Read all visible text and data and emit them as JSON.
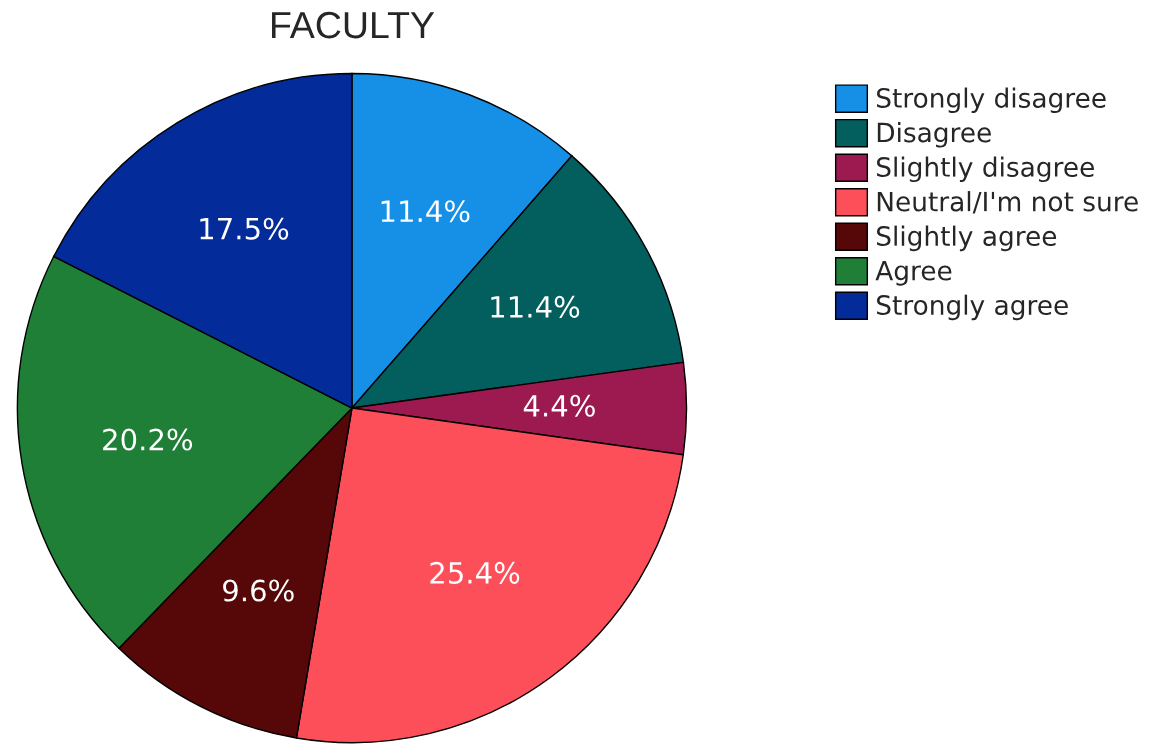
{
  "chart_data": {
    "type": "pie",
    "title": "FACULTY",
    "categories": [
      "Strongly disagree",
      "Disagree",
      "Slightly disagree",
      "Neutral/I'm not sure",
      "Slightly agree",
      "Agree",
      "Strongly agree"
    ],
    "values": [
      11.4,
      11.4,
      4.4,
      25.4,
      9.6,
      20.2,
      17.5
    ],
    "colors": [
      "#1590e6",
      "#035e5e",
      "#9c1a4f",
      "#fc4f5a",
      "#560708",
      "#1f7f37",
      "#032b9a"
    ],
    "value_labels": [
      "11.4%",
      "11.4%",
      "4.4%",
      "25.4%",
      "9.6%",
      "20.2%",
      "17.5%"
    ],
    "legend": "right"
  }
}
